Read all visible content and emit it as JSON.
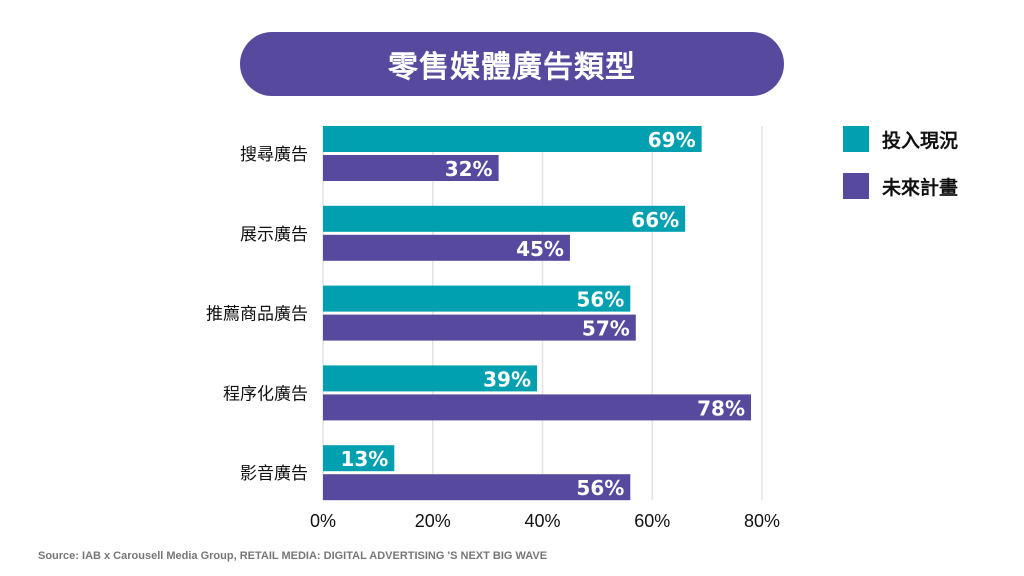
{
  "chart_data": {
    "type": "bar",
    "orientation": "horizontal",
    "title": "零售媒體廣告類型",
    "categories": [
      "搜尋廣告",
      "展示廣告",
      "推薦商品廣告",
      "程序化廣告",
      "影音廣告"
    ],
    "series": [
      {
        "name": "投入現況",
        "color": "#00a0b0",
        "values": [
          69,
          66,
          56,
          39,
          13
        ]
      },
      {
        "name": "未來計畫",
        "color": "#574a9e",
        "values": [
          32,
          45,
          57,
          78,
          56
        ]
      }
    ],
    "xlim": [
      0,
      80
    ],
    "xticks": [
      "0%",
      "20%",
      "40%",
      "60%",
      "80%"
    ],
    "value_suffix": "%",
    "grid": true,
    "legend_position": "right"
  },
  "source": "Source: IAB x Carousell Media Group, RETAIL MEDIA: DIGITAL ADVERTISING 'S NEXT BIG WAVE"
}
